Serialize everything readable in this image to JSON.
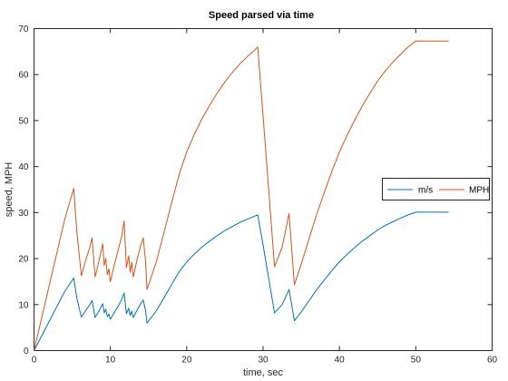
{
  "chart_data": {
    "type": "line",
    "title": "Speed parsed via time",
    "xlabel": "time, sec",
    "ylabel": "speed, MPH",
    "xlim": [
      0,
      60
    ],
    "ylim": [
      0,
      70
    ],
    "xticks": [
      "0",
      "10",
      "20",
      "30",
      "40",
      "50",
      "60"
    ],
    "yticks": [
      "0",
      "10",
      "20",
      "30",
      "40",
      "50",
      "60",
      "70"
    ],
    "grid": false,
    "legend_position": "right",
    "series": [
      {
        "name": "m/s",
        "color": "#0072BD",
        "points": [
          [
            0,
            0
          ],
          [
            1,
            3.2
          ],
          [
            2,
            6.4
          ],
          [
            3,
            9.6
          ],
          [
            4,
            12.8
          ],
          [
            5.2,
            15.8
          ],
          [
            5.6,
            11.5
          ],
          [
            6.2,
            7.3
          ],
          [
            6.8,
            8.8
          ],
          [
            7.3,
            10.0
          ],
          [
            7.6,
            10.9
          ],
          [
            8.0,
            7.2
          ],
          [
            8.5,
            8.6
          ],
          [
            9.0,
            10.2
          ],
          [
            9.2,
            8.2
          ],
          [
            9.4,
            9.0
          ],
          [
            9.6,
            7.4
          ],
          [
            9.8,
            7.9
          ],
          [
            10.0,
            6.8
          ],
          [
            10.5,
            8.2
          ],
          [
            11.0,
            9.6
          ],
          [
            11.5,
            11.2
          ],
          [
            11.8,
            12.5
          ],
          [
            12.1,
            8.0
          ],
          [
            12.4,
            9.2
          ],
          [
            12.6,
            7.6
          ],
          [
            12.8,
            8.6
          ],
          [
            13.0,
            7.2
          ],
          [
            13.5,
            8.8
          ],
          [
            14.0,
            10.3
          ],
          [
            14.3,
            11.0
          ],
          [
            14.6,
            8.8
          ],
          [
            14.8,
            6.0
          ],
          [
            16,
            8.6
          ],
          [
            17,
            11.4
          ],
          [
            18,
            14.3
          ],
          [
            19,
            17.1
          ],
          [
            20,
            19.3
          ],
          [
            21,
            21.0
          ],
          [
            22,
            22.5
          ],
          [
            23,
            23.8
          ],
          [
            24,
            25.0
          ],
          [
            25,
            26.1
          ],
          [
            26,
            27.0
          ],
          [
            27,
            27.9
          ],
          [
            28,
            28.6
          ],
          [
            29,
            29.3
          ],
          [
            29.3,
            29.5
          ],
          [
            30,
            23.0
          ],
          [
            30.6,
            17.0
          ],
          [
            31.5,
            8.2
          ],
          [
            32.5,
            10.0
          ],
          [
            33.4,
            13.3
          ],
          [
            34.1,
            6.5
          ],
          [
            35,
            8.4
          ],
          [
            36,
            10.8
          ],
          [
            37,
            13.2
          ],
          [
            38,
            15.3
          ],
          [
            39,
            17.4
          ],
          [
            40,
            19.3
          ],
          [
            41,
            20.9
          ],
          [
            42,
            22.4
          ],
          [
            43,
            23.8
          ],
          [
            44,
            25.0
          ],
          [
            45,
            26.2
          ],
          [
            46,
            27.2
          ],
          [
            47,
            28.0
          ],
          [
            48,
            28.8
          ],
          [
            49,
            29.5
          ],
          [
            50,
            30.1
          ],
          [
            52,
            30.1
          ],
          [
            54.3,
            30.1
          ]
        ]
      },
      {
        "name": "MPH",
        "color": "#D95319",
        "points": [
          [
            0,
            0
          ],
          [
            1,
            7.1
          ],
          [
            2,
            14.2
          ],
          [
            3,
            21.3
          ],
          [
            4,
            28.4
          ],
          [
            5.2,
            35.3
          ],
          [
            5.6,
            26.0
          ],
          [
            6.2,
            16.3
          ],
          [
            6.8,
            19.8
          ],
          [
            7.3,
            22.4
          ],
          [
            7.6,
            24.5
          ],
          [
            8.0,
            16.0
          ],
          [
            8.5,
            19.4
          ],
          [
            9.0,
            23.2
          ],
          [
            9.2,
            18.5
          ],
          [
            9.4,
            20.0
          ],
          [
            9.6,
            16.5
          ],
          [
            9.8,
            17.8
          ],
          [
            10.0,
            15.0
          ],
          [
            10.5,
            18.5
          ],
          [
            11.0,
            21.7
          ],
          [
            11.5,
            25.0
          ],
          [
            11.8,
            28.2
          ],
          [
            12.1,
            18.0
          ],
          [
            12.4,
            20.6
          ],
          [
            12.6,
            17.0
          ],
          [
            12.8,
            19.2
          ],
          [
            13.0,
            16.0
          ],
          [
            13.5,
            19.8
          ],
          [
            14.0,
            23.0
          ],
          [
            14.3,
            24.5
          ],
          [
            14.6,
            19.7
          ],
          [
            14.8,
            13.3
          ],
          [
            16,
            19.2
          ],
          [
            17,
            25.5
          ],
          [
            18,
            32.0
          ],
          [
            19,
            38.2
          ],
          [
            20,
            43.2
          ],
          [
            21,
            47.0
          ],
          [
            22,
            50.4
          ],
          [
            23,
            53.3
          ],
          [
            24,
            56.0
          ],
          [
            25,
            58.4
          ],
          [
            26,
            60.5
          ],
          [
            27,
            62.4
          ],
          [
            28,
            64.0
          ],
          [
            29,
            65.5
          ],
          [
            29.3,
            66.0
          ],
          [
            30,
            51.0
          ],
          [
            30.6,
            38.0
          ],
          [
            31.5,
            18.2
          ],
          [
            32.5,
            22.5
          ],
          [
            33.4,
            29.8
          ],
          [
            34.1,
            14.3
          ],
          [
            35,
            18.8
          ],
          [
            36,
            24.2
          ],
          [
            37,
            29.5
          ],
          [
            38,
            34.3
          ],
          [
            39,
            38.9
          ],
          [
            40,
            43.2
          ],
          [
            41,
            46.8
          ],
          [
            42,
            50.1
          ],
          [
            43,
            53.2
          ],
          [
            44,
            56.0
          ],
          [
            45,
            58.6
          ],
          [
            46,
            60.8
          ],
          [
            47,
            62.7
          ],
          [
            48,
            64.4
          ],
          [
            49,
            66.0
          ],
          [
            50,
            67.3
          ],
          [
            52,
            67.3
          ],
          [
            54.3,
            67.3
          ]
        ]
      }
    ]
  }
}
